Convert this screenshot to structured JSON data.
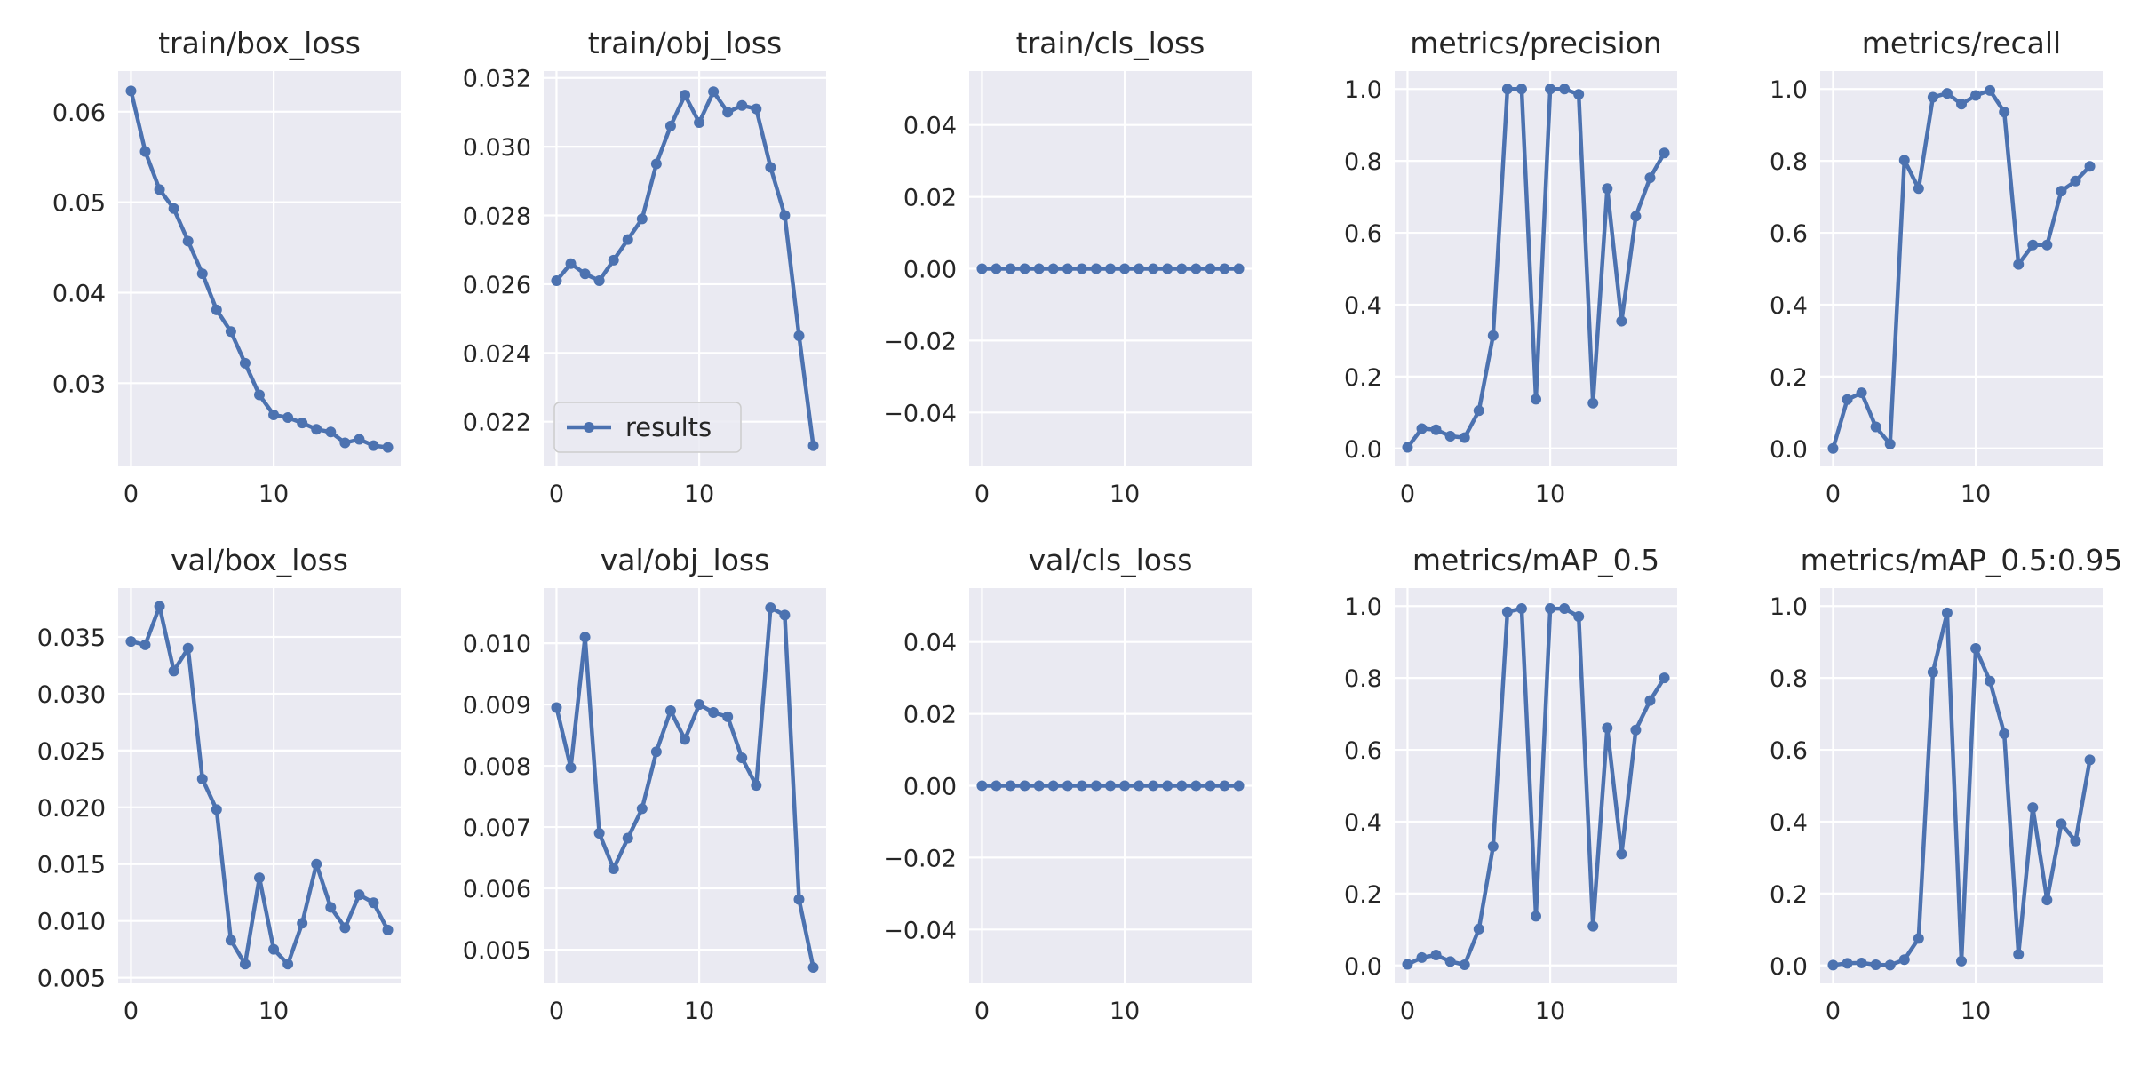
{
  "colors": {
    "line": "#4c72b0",
    "plot_bg": "#eaeaf2",
    "grid": "#ffffff",
    "text": "#262626"
  },
  "legend": {
    "label": "results",
    "placement": "lower-left",
    "panel": 1
  },
  "chart_data": [
    {
      "type": "line",
      "title": "train/box_loss",
      "grid": true,
      "xlim": [
        -0.9,
        18.9
      ],
      "ylim": [
        0.0208,
        0.0645
      ],
      "xticks": [
        0,
        10
      ],
      "xtick_labels": [
        "0",
        "10"
      ],
      "yticks": [
        0.03,
        0.04,
        0.05,
        0.06
      ],
      "ytick_labels": [
        "0.03",
        "0.04",
        "0.05",
        "0.06"
      ],
      "series": [
        {
          "name": "results",
          "x": [
            0,
            1,
            2,
            3,
            4,
            5,
            6,
            7,
            8,
            9,
            10,
            11,
            12,
            13,
            14,
            15,
            16,
            17,
            18
          ],
          "y": [
            0.0623,
            0.0556,
            0.0514,
            0.0493,
            0.0457,
            0.0421,
            0.0381,
            0.0357,
            0.0322,
            0.0287,
            0.0265,
            0.0262,
            0.0256,
            0.0249,
            0.0246,
            0.0234,
            0.0238,
            0.0231,
            0.0229
          ]
        }
      ]
    },
    {
      "type": "line",
      "title": "train/obj_loss",
      "grid": true,
      "xlim": [
        -0.9,
        18.9
      ],
      "ylim": [
        0.0207,
        0.0322
      ],
      "xticks": [
        0,
        10
      ],
      "xtick_labels": [
        "0",
        "10"
      ],
      "yticks": [
        0.022,
        0.024,
        0.026,
        0.028,
        0.03,
        0.032
      ],
      "ytick_labels": [
        "0.022",
        "0.024",
        "0.026",
        "0.028",
        "0.030",
        "0.032"
      ],
      "series": [
        {
          "name": "results",
          "x": [
            0,
            1,
            2,
            3,
            4,
            5,
            6,
            7,
            8,
            9,
            10,
            11,
            12,
            13,
            14,
            15,
            16,
            17,
            18
          ],
          "y": [
            0.0261,
            0.0266,
            0.0263,
            0.0261,
            0.0267,
            0.0273,
            0.0279,
            0.0295,
            0.0306,
            0.0315,
            0.0307,
            0.0316,
            0.031,
            0.0312,
            0.0311,
            0.0294,
            0.028,
            0.0245,
            0.0213
          ]
        }
      ]
    },
    {
      "type": "line",
      "title": "train/cls_loss",
      "grid": true,
      "xlim": [
        -0.9,
        18.9
      ],
      "ylim": [
        -0.055,
        0.055
      ],
      "xticks": [
        0,
        10
      ],
      "xtick_labels": [
        "0",
        "10"
      ],
      "yticks": [
        -0.04,
        -0.02,
        0.0,
        0.02,
        0.04
      ],
      "ytick_labels": [
        "−0.04",
        "−0.02",
        "0.00",
        "0.02",
        "0.04"
      ],
      "series": [
        {
          "name": "results",
          "x": [
            0,
            1,
            2,
            3,
            4,
            5,
            6,
            7,
            8,
            9,
            10,
            11,
            12,
            13,
            14,
            15,
            16,
            17,
            18
          ],
          "y": [
            0,
            0,
            0,
            0,
            0,
            0,
            0,
            0,
            0,
            0,
            0,
            0,
            0,
            0,
            0,
            0,
            0,
            0,
            0
          ]
        }
      ]
    },
    {
      "type": "line",
      "title": "metrics/precision",
      "grid": true,
      "xlim": [
        -0.9,
        18.9
      ],
      "ylim": [
        -0.05,
        1.05
      ],
      "xticks": [
        0,
        10
      ],
      "xtick_labels": [
        "0",
        "10"
      ],
      "yticks": [
        0.0,
        0.2,
        0.4,
        0.6,
        0.8,
        1.0
      ],
      "ytick_labels": [
        "0.0",
        "0.2",
        "0.4",
        "0.6",
        "0.8",
        "1.0"
      ],
      "series": [
        {
          "name": "results",
          "x": [
            0,
            1,
            2,
            3,
            4,
            5,
            6,
            7,
            8,
            9,
            10,
            11,
            12,
            13,
            14,
            15,
            16,
            17,
            18
          ],
          "y": [
            0.003,
            0.055,
            0.052,
            0.034,
            0.03,
            0.105,
            0.314,
            1.0,
            1.0,
            0.137,
            1.0,
            1.0,
            0.985,
            0.126,
            0.723,
            0.354,
            0.646,
            0.753,
            0.822
          ]
        }
      ]
    },
    {
      "type": "line",
      "title": "metrics/recall",
      "grid": true,
      "xlim": [
        -0.9,
        18.9
      ],
      "ylim": [
        -0.05,
        1.05
      ],
      "xticks": [
        0,
        10
      ],
      "xtick_labels": [
        "0",
        "10"
      ],
      "yticks": [
        0.0,
        0.2,
        0.4,
        0.6,
        0.8,
        1.0
      ],
      "ytick_labels": [
        "0.0",
        "0.2",
        "0.4",
        "0.6",
        "0.8",
        "1.0"
      ],
      "series": [
        {
          "name": "results",
          "x": [
            0,
            1,
            2,
            3,
            4,
            5,
            6,
            7,
            8,
            9,
            10,
            11,
            12,
            13,
            14,
            15,
            16,
            17,
            18
          ],
          "y": [
            0.0,
            0.136,
            0.155,
            0.06,
            0.012,
            0.802,
            0.723,
            0.977,
            0.988,
            0.958,
            0.982,
            0.996,
            0.936,
            0.512,
            0.566,
            0.566,
            0.716,
            0.744,
            0.785
          ]
        }
      ]
    },
    {
      "type": "line",
      "title": "val/box_loss",
      "grid": true,
      "xlim": [
        -0.9,
        18.9
      ],
      "ylim": [
        0.0045,
        0.0393
      ],
      "xticks": [
        0,
        10
      ],
      "xtick_labels": [
        "0",
        "10"
      ],
      "yticks": [
        0.005,
        0.01,
        0.015,
        0.02,
        0.025,
        0.03,
        0.035
      ],
      "ytick_labels": [
        "0.005",
        "0.010",
        "0.015",
        "0.020",
        "0.025",
        "0.030",
        "0.035"
      ],
      "series": [
        {
          "name": "results",
          "x": [
            0,
            1,
            2,
            3,
            4,
            5,
            6,
            7,
            8,
            9,
            10,
            11,
            12,
            13,
            14,
            15,
            16,
            17,
            18
          ],
          "y": [
            0.0346,
            0.0343,
            0.0377,
            0.032,
            0.034,
            0.0225,
            0.0198,
            0.0083,
            0.0062,
            0.0138,
            0.0075,
            0.0062,
            0.0098,
            0.015,
            0.0112,
            0.0094,
            0.0123,
            0.0116,
            0.0092
          ]
        }
      ]
    },
    {
      "type": "line",
      "title": "val/obj_loss",
      "grid": true,
      "xlim": [
        -0.9,
        18.9
      ],
      "ylim": [
        0.00445,
        0.0109
      ],
      "xticks": [
        0,
        10
      ],
      "xtick_labels": [
        "0",
        "10"
      ],
      "yticks": [
        0.005,
        0.006,
        0.007,
        0.008,
        0.009,
        0.01
      ],
      "ytick_labels": [
        "0.005",
        "0.006",
        "0.007",
        "0.008",
        "0.009",
        "0.010"
      ],
      "series": [
        {
          "name": "results",
          "x": [
            0,
            1,
            2,
            3,
            4,
            5,
            6,
            7,
            8,
            9,
            10,
            11,
            12,
            13,
            14,
            15,
            16,
            17,
            18
          ],
          "y": [
            0.00895,
            0.00797,
            0.0101,
            0.0069,
            0.00632,
            0.00682,
            0.0073,
            0.00823,
            0.0089,
            0.00843,
            0.009,
            0.00887,
            0.0088,
            0.00813,
            0.00768,
            0.01058,
            0.01046,
            0.00582,
            0.00471
          ]
        }
      ]
    },
    {
      "type": "line",
      "title": "val/cls_loss",
      "grid": true,
      "xlim": [
        -0.9,
        18.9
      ],
      "ylim": [
        -0.055,
        0.055
      ],
      "xticks": [
        0,
        10
      ],
      "xtick_labels": [
        "0",
        "10"
      ],
      "yticks": [
        -0.04,
        -0.02,
        0.0,
        0.02,
        0.04
      ],
      "ytick_labels": [
        "−0.04",
        "−0.02",
        "0.00",
        "0.02",
        "0.04"
      ],
      "series": [
        {
          "name": "results",
          "x": [
            0,
            1,
            2,
            3,
            4,
            5,
            6,
            7,
            8,
            9,
            10,
            11,
            12,
            13,
            14,
            15,
            16,
            17,
            18
          ],
          "y": [
            0,
            0,
            0,
            0,
            0,
            0,
            0,
            0,
            0,
            0,
            0,
            0,
            0,
            0,
            0,
            0,
            0,
            0,
            0
          ]
        }
      ]
    },
    {
      "type": "line",
      "title": "metrics/mAP_0.5",
      "grid": true,
      "xlim": [
        -0.9,
        18.9
      ],
      "ylim": [
        -0.05,
        1.05
      ],
      "xticks": [
        0,
        10
      ],
      "xtick_labels": [
        "0",
        "10"
      ],
      "yticks": [
        0.0,
        0.2,
        0.4,
        0.6,
        0.8,
        1.0
      ],
      "ytick_labels": [
        "0.0",
        "0.2",
        "0.4",
        "0.6",
        "0.8",
        "1.0"
      ],
      "series": [
        {
          "name": "results",
          "x": [
            0,
            1,
            2,
            3,
            4,
            5,
            6,
            7,
            8,
            9,
            10,
            11,
            12,
            13,
            14,
            15,
            16,
            17,
            18
          ],
          "y": [
            0.003,
            0.022,
            0.029,
            0.011,
            0.002,
            0.101,
            0.331,
            0.984,
            0.993,
            0.137,
            0.993,
            0.993,
            0.971,
            0.109,
            0.661,
            0.31,
            0.655,
            0.737,
            0.8
          ]
        }
      ]
    },
    {
      "type": "line",
      "title": "metrics/mAP_0.5:0.95",
      "grid": true,
      "xlim": [
        -0.9,
        18.9
      ],
      "ylim": [
        -0.05,
        1.05
      ],
      "xticks": [
        0,
        10
      ],
      "xtick_labels": [
        "0",
        "10"
      ],
      "yticks": [
        0.0,
        0.2,
        0.4,
        0.6,
        0.8,
        1.0
      ],
      "ytick_labels": [
        "0.0",
        "0.2",
        "0.4",
        "0.6",
        "0.8",
        "1.0"
      ],
      "series": [
        {
          "name": "results",
          "x": [
            0,
            1,
            2,
            3,
            4,
            5,
            6,
            7,
            8,
            9,
            10,
            11,
            12,
            13,
            14,
            15,
            16,
            17,
            18
          ],
          "y": [
            0.001,
            0.006,
            0.007,
            0.002,
            0.001,
            0.016,
            0.075,
            0.816,
            0.981,
            0.012,
            0.882,
            0.791,
            0.645,
            0.031,
            0.439,
            0.182,
            0.394,
            0.346,
            0.572
          ]
        }
      ]
    }
  ]
}
